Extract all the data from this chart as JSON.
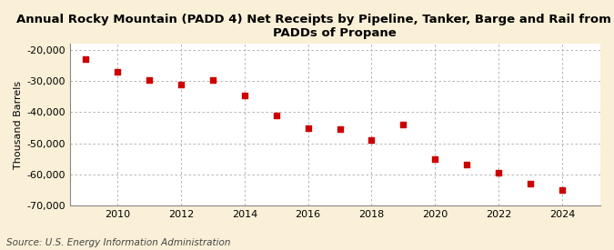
{
  "title_line1": "Annual Rocky Mountain (PADD 4) Net Receipts by Pipeline, Tanker, Barge and Rail from Other",
  "title_line2": "PADDs of Propane",
  "ylabel": "Thousand Barrels",
  "source": "Source: U.S. Energy Information Administration",
  "background_color": "#faf0d7",
  "plot_background_color": "#ffffff",
  "marker_color": "#cc0000",
  "years": [
    2009,
    2010,
    2011,
    2012,
    2013,
    2014,
    2015,
    2016,
    2017,
    2018,
    2019,
    2020,
    2021,
    2022,
    2023,
    2024
  ],
  "values": [
    -23000,
    -27000,
    -29500,
    -31000,
    -29500,
    -34500,
    -41000,
    -45000,
    -45500,
    -49000,
    -44000,
    -55000,
    -57000,
    -59500,
    -63000,
    -65000
  ],
  "ylim": [
    -70000,
    -18000
  ],
  "yticks": [
    -70000,
    -60000,
    -50000,
    -40000,
    -30000,
    -20000
  ],
  "xlim": [
    2008.5,
    2025.2
  ],
  "xticks": [
    2010,
    2012,
    2014,
    2016,
    2018,
    2020,
    2022,
    2024
  ],
  "grid_color": "#aaaaaa",
  "title_fontsize": 9.5,
  "axis_fontsize": 8,
  "source_fontsize": 7.5
}
